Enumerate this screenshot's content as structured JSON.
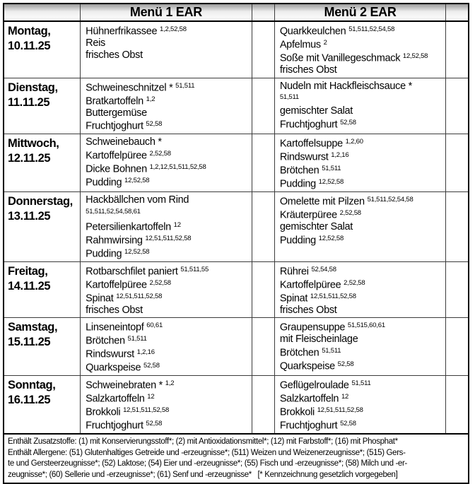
{
  "header": {
    "day_col_label": "",
    "menu1_label": "Menü 1 EAR",
    "menu2_label": "Menü 2 EAR"
  },
  "colors": {
    "header_gradient_top": "#9d9d9d",
    "header_gradient_bottom": "#eeeeee",
    "border": "#000000",
    "text": "#000000",
    "background": "#ffffff"
  },
  "rows": [
    {
      "day": "Montag,",
      "date": "10.11.25",
      "menu1": [
        {
          "text": "Hühnerfrikassee",
          "sup": "1,2,52,58"
        },
        {
          "text": "Reis",
          "sup": ""
        },
        {
          "text": "frisches Obst",
          "sup": ""
        }
      ],
      "menu2": [
        {
          "text": "Quarkkeulchen",
          "sup": "51,511,52,54,58"
        },
        {
          "text": "Apfelmus",
          "sup": "2"
        },
        {
          "text": "Soße mit Vanillegeschmack",
          "sup": "12,52,58"
        },
        {
          "text": "frisches Obst",
          "sup": ""
        }
      ]
    },
    {
      "day": "Dienstag,",
      "date": "11.11.25",
      "menu1": [
        {
          "text": "Schweineschnitzel *",
          "sup": "51,511"
        },
        {
          "text": "Bratkartoffeln",
          "sup": "1,2"
        },
        {
          "text": "Buttergemüse",
          "sup": ""
        },
        {
          "text": "Fruchtjoghurt",
          "sup": "52,58"
        }
      ],
      "menu2": [
        {
          "text": "Nudeln mit Hackfleischsauce *",
          "sup": ""
        },
        {
          "text": "",
          "sup": "51,511"
        },
        {
          "text": "gemischter Salat",
          "sup": ""
        },
        {
          "text": "Fruchtjoghurt",
          "sup": "52,58"
        }
      ]
    },
    {
      "day": "Mittwoch,",
      "date": "12.11.25",
      "menu1": [
        {
          "text": "Schweinebauch *",
          "sup": ""
        },
        {
          "text": "Kartoffelpüree",
          "sup": "2,52,58"
        },
        {
          "text": "Dicke Bohnen",
          "sup": "1,2,12,51,511,52,58"
        },
        {
          "text": "Pudding",
          "sup": "12,52,58"
        }
      ],
      "menu2": [
        {
          "text": "Kartoffelsuppe",
          "sup": "1,2,60"
        },
        {
          "text": "Rindswurst",
          "sup": "1,2,16"
        },
        {
          "text": "Brötchen",
          "sup": "51,511"
        },
        {
          "text": "Pudding",
          "sup": "12,52,58"
        }
      ]
    },
    {
      "day": "Donnerstag,",
      "date": "13.11.25",
      "menu1": [
        {
          "text": "Hackbällchen vom Rind",
          "sup": ""
        },
        {
          "text": "",
          "sup": "51,511,52,54,58,61"
        },
        {
          "text": "Petersilienkartoffeln",
          "sup": "12"
        },
        {
          "text": "Rahmwirsing",
          "sup": "12,51,511,52,58"
        },
        {
          "text": "Pudding",
          "sup": "12,52,58"
        }
      ],
      "menu2": [
        {
          "text": "Omelette mit Pilzen",
          "sup": "51,511,52,54,58"
        },
        {
          "text": "Kräuterpüree",
          "sup": "2,52,58"
        },
        {
          "text": "gemischter Salat",
          "sup": ""
        },
        {
          "text": "Pudding",
          "sup": "12,52,58"
        }
      ]
    },
    {
      "day": "Freitag,",
      "date": "14.11.25",
      "menu1": [
        {
          "text": "Rotbarschfilet paniert",
          "sup": "51,511,55"
        },
        {
          "text": "Kartoffelpüree",
          "sup": "2,52,58"
        },
        {
          "text": "Spinat",
          "sup": "12,51,511,52,58"
        },
        {
          "text": "frisches Obst",
          "sup": ""
        }
      ],
      "menu2": [
        {
          "text": "Rührei",
          "sup": "52,54,58"
        },
        {
          "text": "Kartoffelpüree",
          "sup": "2,52,58"
        },
        {
          "text": "Spinat",
          "sup": "12,51,511,52,58"
        },
        {
          "text": "frisches Obst",
          "sup": ""
        }
      ]
    },
    {
      "day": "Samstag,",
      "date": "15.11.25",
      "menu1": [
        {
          "text": "Linseneintopf",
          "sup": "60,61"
        },
        {
          "text": "Brötchen",
          "sup": "51,511"
        },
        {
          "text": "Rindswurst",
          "sup": "1,2,16"
        },
        {
          "text": "Quarkspeise",
          "sup": "52,58"
        }
      ],
      "menu2": [
        {
          "text": "Graupensuppe",
          "sup": "51,515,60,61"
        },
        {
          "text": "mit Fleischeinlage",
          "sup": ""
        },
        {
          "text": "Brötchen",
          "sup": "51,511"
        },
        {
          "text": "Quarkspeise",
          "sup": "52,58"
        }
      ]
    },
    {
      "day": "Sonntag,",
      "date": "16.11.25",
      "menu1": [
        {
          "text": "Schweinebraten *",
          "sup": "1,2"
        },
        {
          "text": "Salzkartoffeln",
          "sup": "12"
        },
        {
          "text": "Brokkoli",
          "sup": "12,51,511,52,58"
        },
        {
          "text": "Fruchtjoghurt",
          "sup": "52,58"
        }
      ],
      "menu2": [
        {
          "text": "Geflügelroulade",
          "sup": "51,511"
        },
        {
          "text": "Salzkartoffeln",
          "sup": "12"
        },
        {
          "text": "Brokkoli",
          "sup": "12,51,511,52,58"
        },
        {
          "text": "Fruchtjoghurt",
          "sup": "52,58"
        }
      ]
    }
  ],
  "footer": {
    "lines": [
      "Enthält Zusatzstoffe: (1) mit Konservierungsstoff*; (2) mit Antioxidationsmittel*; (12) mit Farbstoff*; (16) mit Phosphat*",
      "Enthält Allergene: (51) Glutenhaltiges Getreide und -erzeugnisse*; (511) Weizen und Weizenerzeugnisse*; (515) Gers-",
      "te und Gersteerzeugnisse*; (52) Laktose; (54) Eier und -erzeugnisse*; (55) Fisch und -erzeugnisse*; (58) Milch und -er-",
      "zeugnisse*; (60) Sellerie und -erzeugnisse*; (61) Senf und -erzeugnisse*   [* Kennzeichnung gesetzlich vorgegeben]"
    ]
  }
}
